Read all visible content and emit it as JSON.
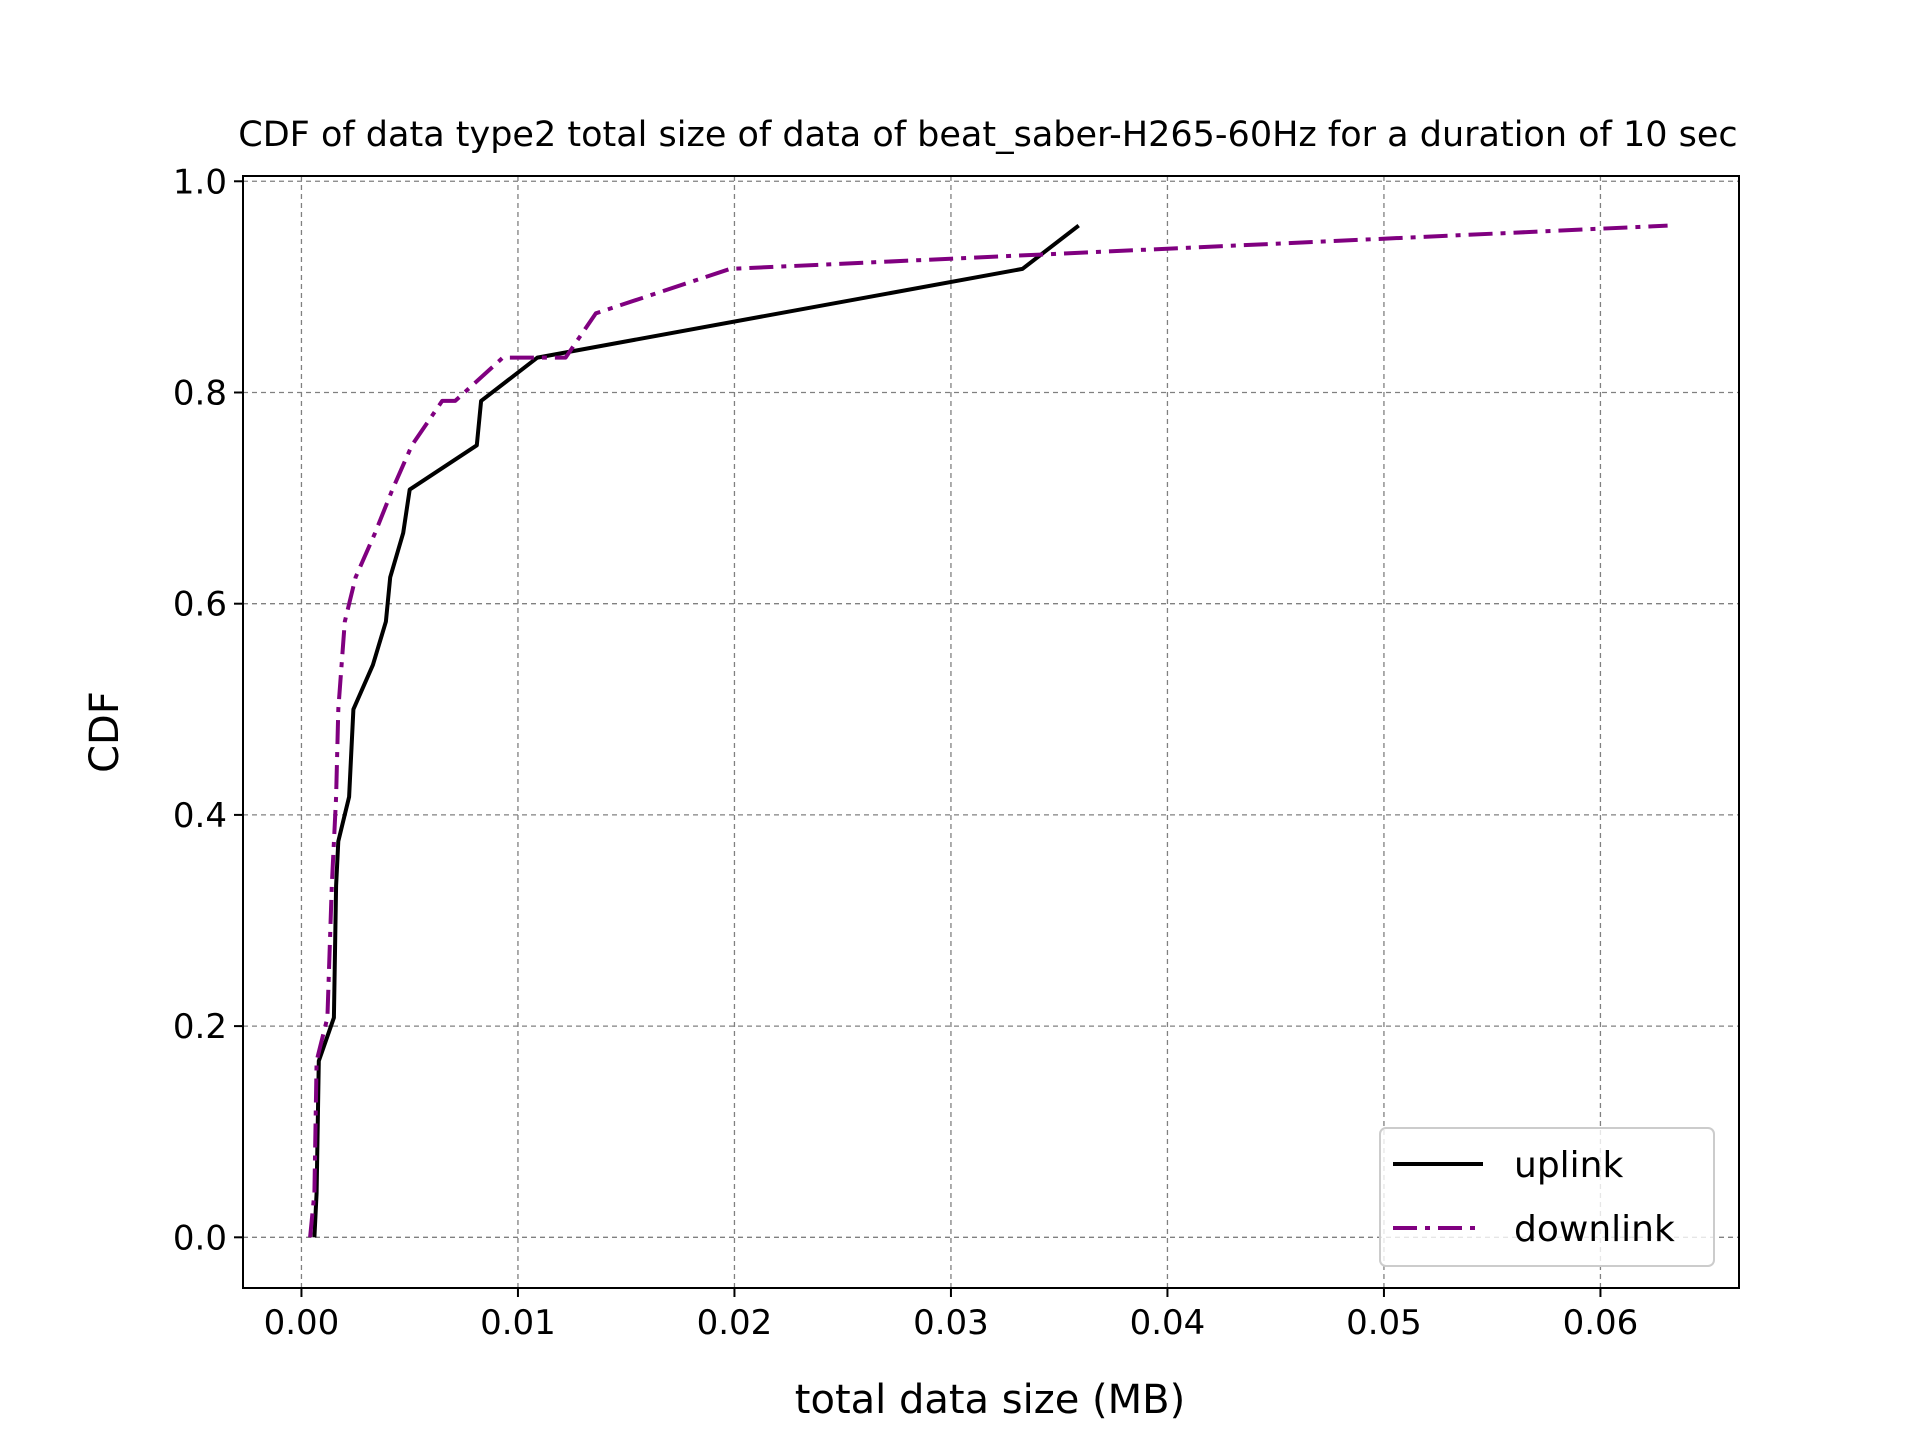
{
  "chart_data": {
    "type": "line",
    "title": "CDF of data type2 total size of data of beat_saber-H265-60Hz for a duration of 10 sec",
    "xlabel": "total data size (MB)",
    "ylabel": "CDF",
    "xlim": [
      -0.0027,
      0.0664
    ],
    "ylim": [
      -0.048,
      1.005
    ],
    "xticks": [
      0.0,
      0.01,
      0.02,
      0.03,
      0.04,
      0.05,
      0.06
    ],
    "xtick_labels": [
      "0.00",
      "0.01",
      "0.02",
      "0.03",
      "0.04",
      "0.05",
      "0.06"
    ],
    "yticks": [
      0.0,
      0.2,
      0.4,
      0.6,
      0.8,
      1.0
    ],
    "ytick_labels": [
      "0.0",
      "0.2",
      "0.4",
      "0.6",
      "0.8",
      "1.0"
    ],
    "grid": true,
    "legend_position": "lower-right",
    "series": [
      {
        "name": "uplink",
        "color": "#000000",
        "linestyle": "solid",
        "x": [
          0.0006,
          0.0007,
          0.0008,
          0.0015,
          0.0016,
          0.0017,
          0.0022,
          0.0024,
          0.0033,
          0.0039,
          0.0041,
          0.0047,
          0.005,
          0.0081,
          0.0083,
          0.0109,
          0.0333,
          0.0359
        ],
        "y": [
          0.0,
          0.042,
          0.167,
          0.208,
          0.333,
          0.375,
          0.417,
          0.5,
          0.542,
          0.583,
          0.625,
          0.667,
          0.708,
          0.75,
          0.792,
          0.833,
          0.917,
          0.958
        ]
      },
      {
        "name": "downlink",
        "color": "#800080",
        "linestyle": "dashdot",
        "x": [
          0.0004,
          0.0006,
          0.0007,
          0.0012,
          0.0014,
          0.0016,
          0.0017,
          0.002,
          0.0025,
          0.0034,
          0.0042,
          0.0051,
          0.0065,
          0.0071,
          0.0093,
          0.0122,
          0.0136,
          0.0198,
          0.0631
        ],
        "y": [
          0.0,
          0.042,
          0.167,
          0.208,
          0.333,
          0.417,
          0.5,
          0.583,
          0.625,
          0.667,
          0.708,
          0.75,
          0.792,
          0.792,
          0.833,
          0.833,
          0.875,
          0.917,
          0.958
        ]
      }
    ]
  }
}
